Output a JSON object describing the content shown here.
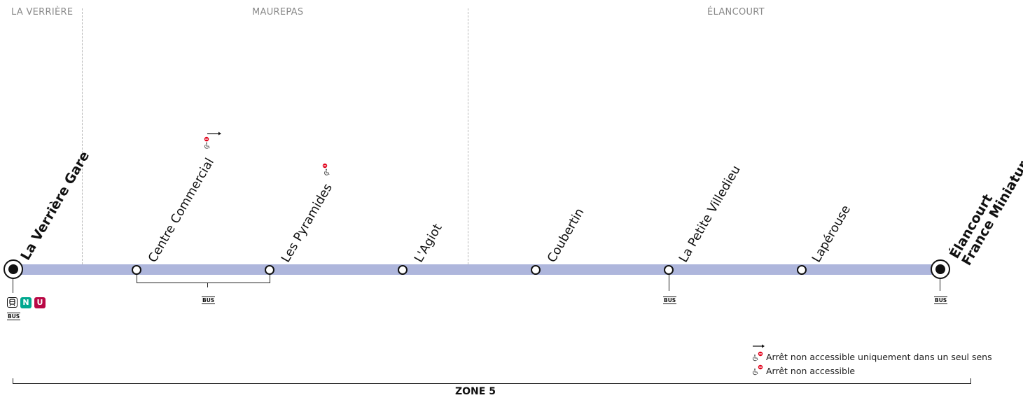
{
  "communes": [
    "LA VERRIÈRE",
    "MAUREPAS",
    "ÉLANCOURT"
  ],
  "stops": [
    {
      "name": "La Verrière Gare",
      "terminus": true,
      "bus": true,
      "connections": [
        "N",
        "U"
      ]
    },
    {
      "name": "Centre Commercial",
      "accessibility": "one-direction"
    },
    {
      "name": "Les Pyramides",
      "accessibility": "none"
    },
    {
      "name": "L'Agiot"
    },
    {
      "name": "Coubertin"
    },
    {
      "name": "La Petite Villedieu",
      "bus": true
    },
    {
      "name": "Lapérouse"
    },
    {
      "name": "Élancourt",
      "name_line2": "France Miniature",
      "terminus": true,
      "bus": true
    }
  ],
  "shared_bus_label": "BUS",
  "bus_label": "BUS",
  "line_color": "#aeb6dc",
  "connection_colors": {
    "train": "#111111",
    "N": "#00a88f",
    "U": "#b90845"
  },
  "legend": {
    "one_direction": "Arrêt non accessible uniquement dans un seul sens",
    "not_accessible": "Arrêt non accessible"
  },
  "zone_label": "ZONE 5"
}
